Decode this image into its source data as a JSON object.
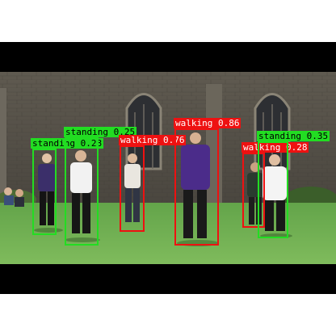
{
  "colors": {
    "standing": "#22dd22",
    "walking": "#ee1111"
  },
  "detections": [
    {
      "label": "standing 0.28",
      "class": "standing"
    },
    {
      "label": "standing 0.25",
      "class": "standing"
    },
    {
      "label": "walking 0.76",
      "class": "walking"
    },
    {
      "label": "walking 0.86",
      "class": "walking"
    },
    {
      "label": "walking 0.28",
      "class": "walking"
    },
    {
      "label": "standing 0.35",
      "class": "standing"
    }
  ]
}
